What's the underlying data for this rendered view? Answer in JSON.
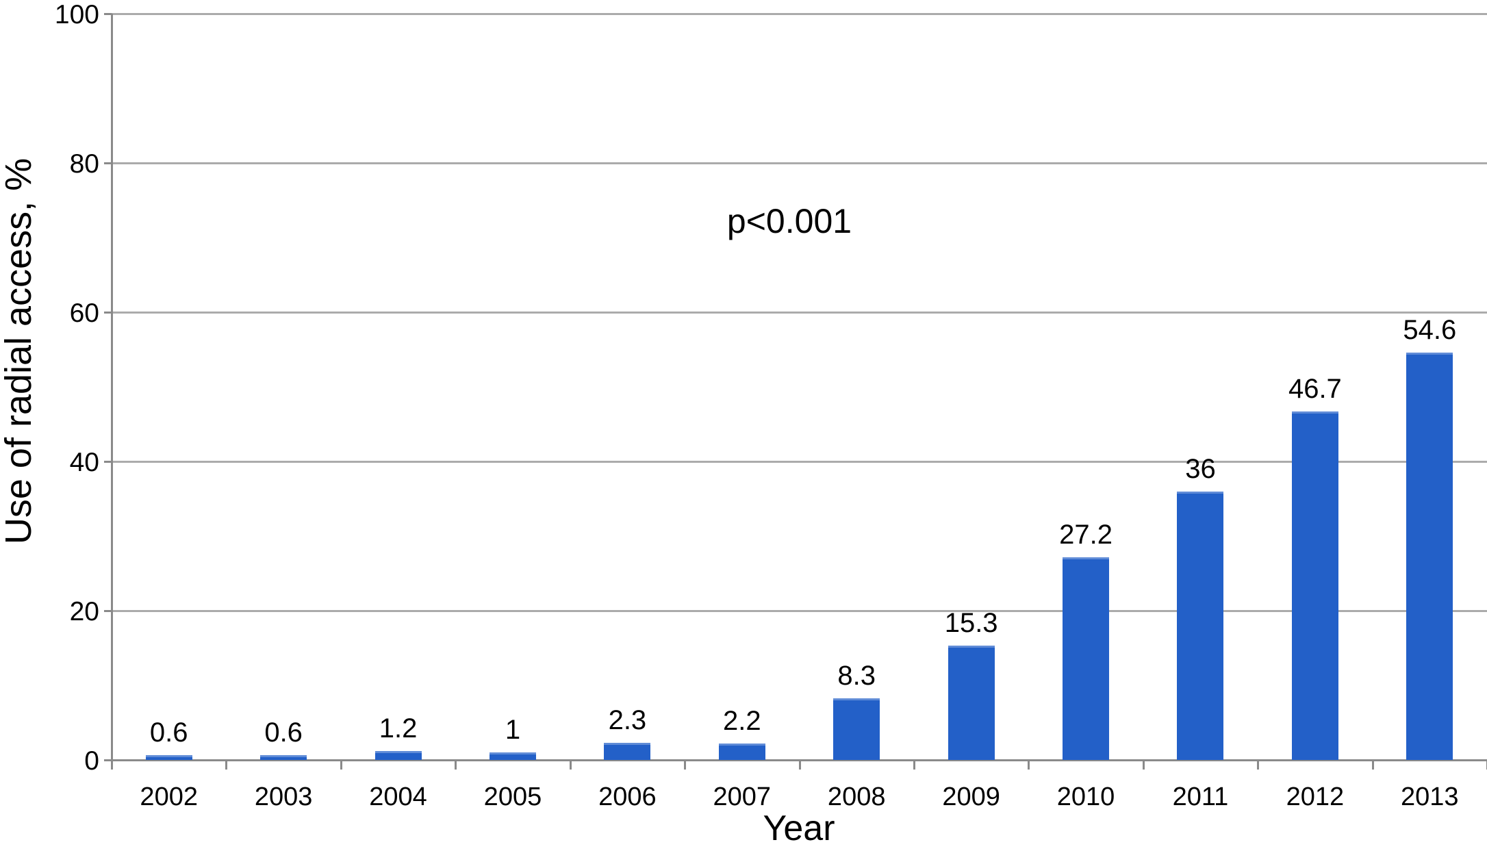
{
  "chart_data": {
    "type": "bar",
    "title": "",
    "xlabel": "Year",
    "ylabel": "Use of radial access, %",
    "annotation": "p<0.001",
    "categories": [
      "2002",
      "2003",
      "2004",
      "2005",
      "2006",
      "2007",
      "2008",
      "2009",
      "2010",
      "2011",
      "2012",
      "2013"
    ],
    "values": [
      0.6,
      0.6,
      1.2,
      1,
      2.3,
      2.2,
      8.3,
      15.3,
      27.2,
      36,
      46.7,
      54.6
    ],
    "bar_labels": [
      "0.6",
      "0.6",
      "1.2",
      "1",
      "2.3",
      "2.2",
      "8.3",
      "15.3",
      "27.2",
      "36",
      "46.7",
      "54.6"
    ],
    "ylim": [
      0,
      100
    ],
    "yticks": [
      0,
      20,
      40,
      60,
      80,
      100
    ],
    "ytick_labels": [
      "0",
      "20",
      "40",
      "60",
      "80",
      "100"
    ],
    "grid": true,
    "legend": "none",
    "bar_color": "#2360c8",
    "grid_color": "#ababab",
    "axis_color": "#8a8a8a",
    "text_color": "#000000"
  }
}
